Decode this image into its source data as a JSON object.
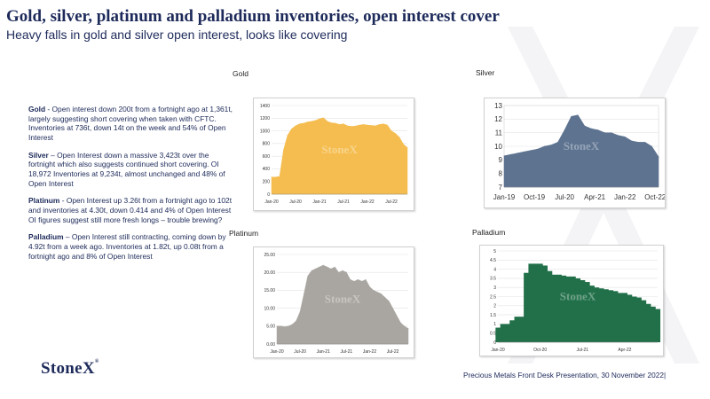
{
  "header": {
    "title": "Gold, silver, platinum and palladium inventories, open interest cover",
    "subtitle": "Heavy falls in gold and silver open interest, looks like covering"
  },
  "notes": [
    {
      "metal": "Gold",
      "text": " - Open interest down 200t from a fortnight ago at 1,361t, largely suggesting short covering when taken with CFTC.  Inventories at 736t, down 14t on the week and 54% of Open Interest"
    },
    {
      "metal": "Silver",
      "text": " – Open Interest down a massive 3,423t over the fortnight which also suggests continued short covering.  OI 18,972 Inventories at 9,234t, almost unchanged and 48% of Open Interest"
    },
    {
      "metal": "Platinum",
      "text": "  - Open Interest up 3.26t from a fortnight ago to 102t and inventories at 4.30t, down 0.414 and 4% of Open Interest   OI figures suggest still more fresh longs – trouble brewing?"
    },
    {
      "metal": "Palladium",
      "text": " – Open Interest still contracting, coming down by 4.92t from a week ago. Inventories at 1.82t, up 0.08t from a fortnight ago and 8% of Open Interest"
    }
  ],
  "brand": {
    "name": "StoneX",
    "mark": "®"
  },
  "footer": {
    "text": "Precious Metals Front Desk Presentation, 30 November 2022|"
  },
  "colors": {
    "gold": "#f5bd4f",
    "silver": "#5d7390",
    "platinum": "#a9a6a1",
    "palladium": "#22704a"
  },
  "chart_data": [
    {
      "type": "area",
      "panel_label": "Gold",
      "x": [
        "2020-01",
        "2020-02",
        "2020-03",
        "2020-04",
        "2020-05",
        "2020-06",
        "2020-07",
        "2020-08",
        "2020-09",
        "2020-10",
        "2020-11",
        "2020-12",
        "2021-01",
        "2021-02",
        "2021-03",
        "2021-04",
        "2021-05",
        "2021-06",
        "2021-07",
        "2021-08",
        "2021-09",
        "2021-10",
        "2021-11",
        "2021-12",
        "2022-01",
        "2022-02",
        "2022-03",
        "2022-04",
        "2022-05",
        "2022-06",
        "2022-07",
        "2022-08",
        "2022-09",
        "2022-10",
        "2022-11"
      ],
      "values": [
        270,
        270,
        280,
        700,
        930,
        1030,
        1080,
        1110,
        1120,
        1140,
        1150,
        1165,
        1190,
        1205,
        1150,
        1125,
        1120,
        1100,
        1110,
        1080,
        1070,
        1075,
        1090,
        1100,
        1090,
        1085,
        1080,
        1100,
        1110,
        1090,
        1000,
        960,
        900,
        790,
        736
      ],
      "xticks": [
        "Jan-20",
        "Jul-20",
        "Jan-21",
        "Jul-21",
        "Jan-22",
        "Jul-22"
      ],
      "yticks": [
        0,
        200,
        400,
        600,
        800,
        1000,
        1200,
        1400
      ],
      "ylim": [
        0,
        1400
      ]
    },
    {
      "type": "area",
      "panel_label": "Silver",
      "x": [
        "2019-01",
        "2019-03",
        "2019-05",
        "2019-07",
        "2019-09",
        "2019-11",
        "2020-01",
        "2020-03",
        "2020-05",
        "2020-07",
        "2020-09",
        "2020-11",
        "2021-01",
        "2021-03",
        "2021-05",
        "2021-07",
        "2021-09",
        "2021-11",
        "2022-01",
        "2022-03",
        "2022-05",
        "2022-07",
        "2022-09",
        "2022-11"
      ],
      "values": [
        9.3,
        9.4,
        9.5,
        9.6,
        9.7,
        9.8,
        10.0,
        10.1,
        10.3,
        11.2,
        12.2,
        12.3,
        11.5,
        11.3,
        11.2,
        11.0,
        11.0,
        10.8,
        10.7,
        10.4,
        10.3,
        10.3,
        10.0,
        9.234
      ],
      "xticks": [
        "Jan-19",
        "Oct-19",
        "Jul-20",
        "Apr-21",
        "Jan-22",
        "Oct-22"
      ],
      "yticks": [
        7,
        8,
        9,
        10,
        11,
        12,
        13
      ],
      "ylim": [
        7,
        13
      ]
    },
    {
      "type": "area",
      "panel_label": "Platinum",
      "x": [
        "2020-01",
        "2020-02",
        "2020-03",
        "2020-04",
        "2020-05",
        "2020-06",
        "2020-07",
        "2020-08",
        "2020-09",
        "2020-10",
        "2020-11",
        "2020-12",
        "2021-01",
        "2021-02",
        "2021-03",
        "2021-04",
        "2021-05",
        "2021-06",
        "2021-07",
        "2021-08",
        "2021-09",
        "2021-10",
        "2021-11",
        "2021-12",
        "2022-01",
        "2022-02",
        "2022-03",
        "2022-04",
        "2022-05",
        "2022-06",
        "2022-07",
        "2022-08",
        "2022-09",
        "2022-10",
        "2022-11"
      ],
      "values": [
        5.0,
        5.0,
        4.8,
        5.0,
        5.5,
        6.5,
        9.0,
        14.0,
        19.0,
        20.5,
        21.0,
        21.5,
        22.0,
        21.5,
        21.0,
        21.5,
        20.0,
        20.5,
        20.0,
        18.0,
        17.5,
        18.0,
        17.5,
        18.0,
        16.0,
        15.0,
        14.5,
        14.0,
        13.0,
        12.0,
        10.0,
        8.0,
        6.0,
        5.0,
        4.3
      ],
      "xticks": [
        "Jan-20",
        "Jul-20",
        "Jan-21",
        "Jul-21",
        "Jan-22",
        "Jul-22"
      ],
      "yticks": [
        "0.00",
        "5.00",
        "10.00",
        "15.00",
        "20.00",
        "25.00"
      ],
      "ylim": [
        0,
        25
      ]
    },
    {
      "type": "bar",
      "panel_label": "Palladium",
      "x": [
        "2020-01",
        "2020-02",
        "2020-03",
        "2020-04",
        "2020-05",
        "2020-06",
        "2020-07",
        "2020-08",
        "2020-09",
        "2020-10",
        "2020-11",
        "2020-12",
        "2021-01",
        "2021-02",
        "2021-03",
        "2021-04",
        "2021-05",
        "2021-06",
        "2021-07",
        "2021-08",
        "2021-09",
        "2021-10",
        "2021-11",
        "2021-12",
        "2022-01",
        "2022-02",
        "2022-03",
        "2022-04",
        "2022-05",
        "2022-06",
        "2022-07",
        "2022-08",
        "2022-09",
        "2022-10",
        "2022-11"
      ],
      "values": [
        0.8,
        1.0,
        1.0,
        1.2,
        1.4,
        1.4,
        3.8,
        4.3,
        4.3,
        4.3,
        4.2,
        3.9,
        3.7,
        3.7,
        3.65,
        3.6,
        3.6,
        3.5,
        3.4,
        3.3,
        3.1,
        3.0,
        2.95,
        2.9,
        2.85,
        2.8,
        2.7,
        2.7,
        2.6,
        2.5,
        2.45,
        2.3,
        2.1,
        1.95,
        1.82
      ],
      "xticks": [
        "Jan-20",
        "Oct-20",
        "Jul-21",
        "Apr-22"
      ],
      "yticks": [
        0,
        0.5,
        1,
        1.5,
        2,
        2.5,
        3,
        3.5,
        4,
        4.5,
        5
      ],
      "ylim": [
        0,
        5
      ]
    }
  ]
}
